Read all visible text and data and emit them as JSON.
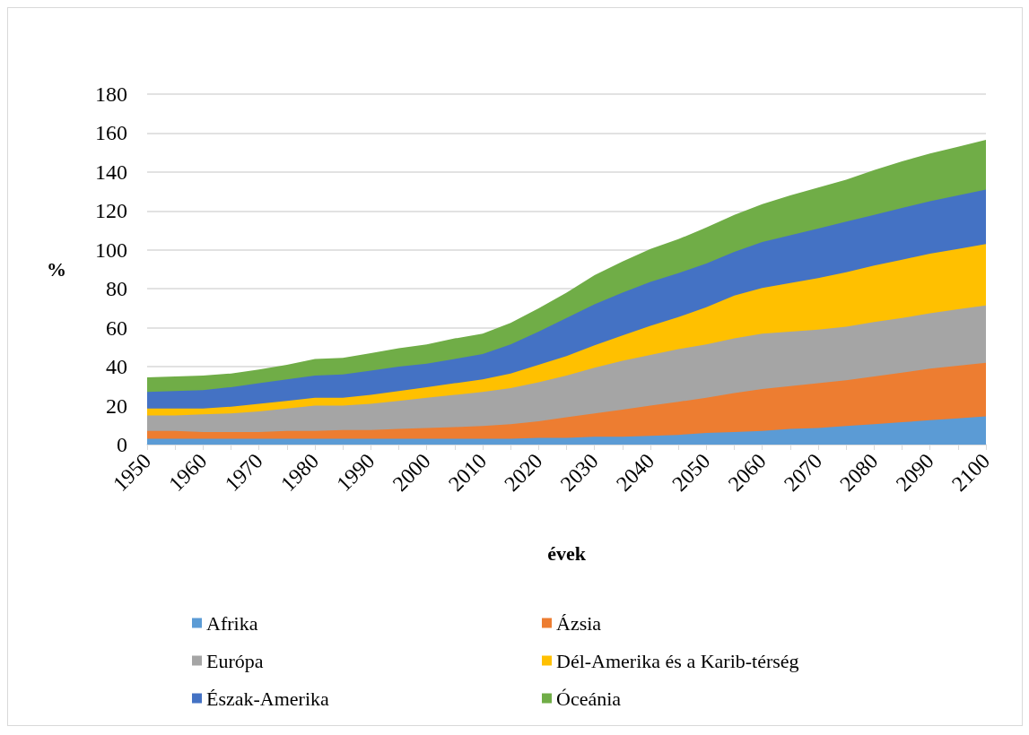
{
  "chart_data": {
    "type": "area",
    "stacked": true,
    "xlabel": "évek",
    "ylabel": "%",
    "x": [
      1950,
      1955,
      1960,
      1965,
      1970,
      1975,
      1980,
      1985,
      1990,
      1995,
      2000,
      2005,
      2010,
      2015,
      2020,
      2025,
      2030,
      2035,
      2040,
      2045,
      2050,
      2055,
      2060,
      2065,
      2070,
      2075,
      2080,
      2085,
      2090,
      2095,
      2100
    ],
    "xlim": [
      1950,
      2100
    ],
    "xticks": [
      1950,
      1960,
      1970,
      1980,
      1990,
      2000,
      2010,
      2020,
      2030,
      2040,
      2050,
      2060,
      2070,
      2080,
      2090,
      2100
    ],
    "ylim": [
      0,
      180
    ],
    "yticks": [
      0,
      20,
      40,
      60,
      80,
      100,
      120,
      140,
      160,
      180
    ],
    "grid": "y",
    "legend": "bottom",
    "series": [
      {
        "name": "Afrika",
        "color": "#5b9bd5",
        "values": [
          3,
          3,
          3,
          3,
          3,
          3,
          3,
          3,
          3,
          3,
          3,
          3,
          3,
          3,
          3.5,
          3.5,
          4,
          4,
          4.5,
          5,
          6,
          6.5,
          7,
          8,
          8.5,
          9.5,
          10.5,
          11.5,
          12.5,
          13.5,
          14.5
        ]
      },
      {
        "name": "Ázsia",
        "color": "#ed7d31",
        "values": [
          4,
          4,
          3.5,
          3.5,
          3.5,
          4,
          4,
          4.5,
          4.5,
          5,
          5.5,
          6,
          6.5,
          7.5,
          8.5,
          10.5,
          12,
          14,
          15.5,
          17,
          18,
          20,
          21.5,
          22,
          23,
          23.5,
          24.5,
          25.5,
          26.5,
          27,
          27.5
        ]
      },
      {
        "name": "Európa",
        "color": "#a5a5a5",
        "values": [
          8,
          8,
          9,
          9.5,
          10.5,
          11.5,
          13,
          12.5,
          13.5,
          14.5,
          15.5,
          16.5,
          17.5,
          18.5,
          20,
          21.5,
          23.5,
          25,
          26,
          27,
          27.5,
          28,
          28.5,
          28,
          27.5,
          27.5,
          28,
          28,
          28.5,
          29,
          29.5
        ]
      },
      {
        "name": "Dél-Amerika és a Karib-térség",
        "color": "#ffc000",
        "values": [
          3.5,
          3.5,
          3,
          3.5,
          4,
          4,
          4,
          4,
          4.5,
          5,
          5.5,
          6,
          6.5,
          7.5,
          9,
          10,
          11.5,
          13,
          15,
          16.5,
          19,
          22,
          23.5,
          25,
          26.5,
          28,
          29,
          30,
          30.5,
          31,
          31.5
        ]
      },
      {
        "name": "Észak-Amerika",
        "color": "#4472c4",
        "values": [
          8.5,
          9,
          9.5,
          10,
          10.5,
          11,
          11.5,
          12,
          12.5,
          12.5,
          12,
          12.5,
          13,
          15,
          17,
          19.5,
          21,
          22,
          22.5,
          22.5,
          22.5,
          22.5,
          23.5,
          24.5,
          25.5,
          26,
          26,
          26.5,
          27,
          27.5,
          28
        ]
      },
      {
        "name": "Óceánia",
        "color": "#70ad47",
        "values": [
          7.5,
          7.5,
          7.5,
          7,
          7,
          7.5,
          8.5,
          8.5,
          9,
          9.5,
          10,
          10.5,
          10.5,
          11,
          12,
          13,
          15,
          16,
          17,
          17.5,
          18.5,
          19,
          19.5,
          20.5,
          21,
          21.5,
          23,
          24,
          24.5,
          25,
          25.5
        ]
      }
    ]
  }
}
